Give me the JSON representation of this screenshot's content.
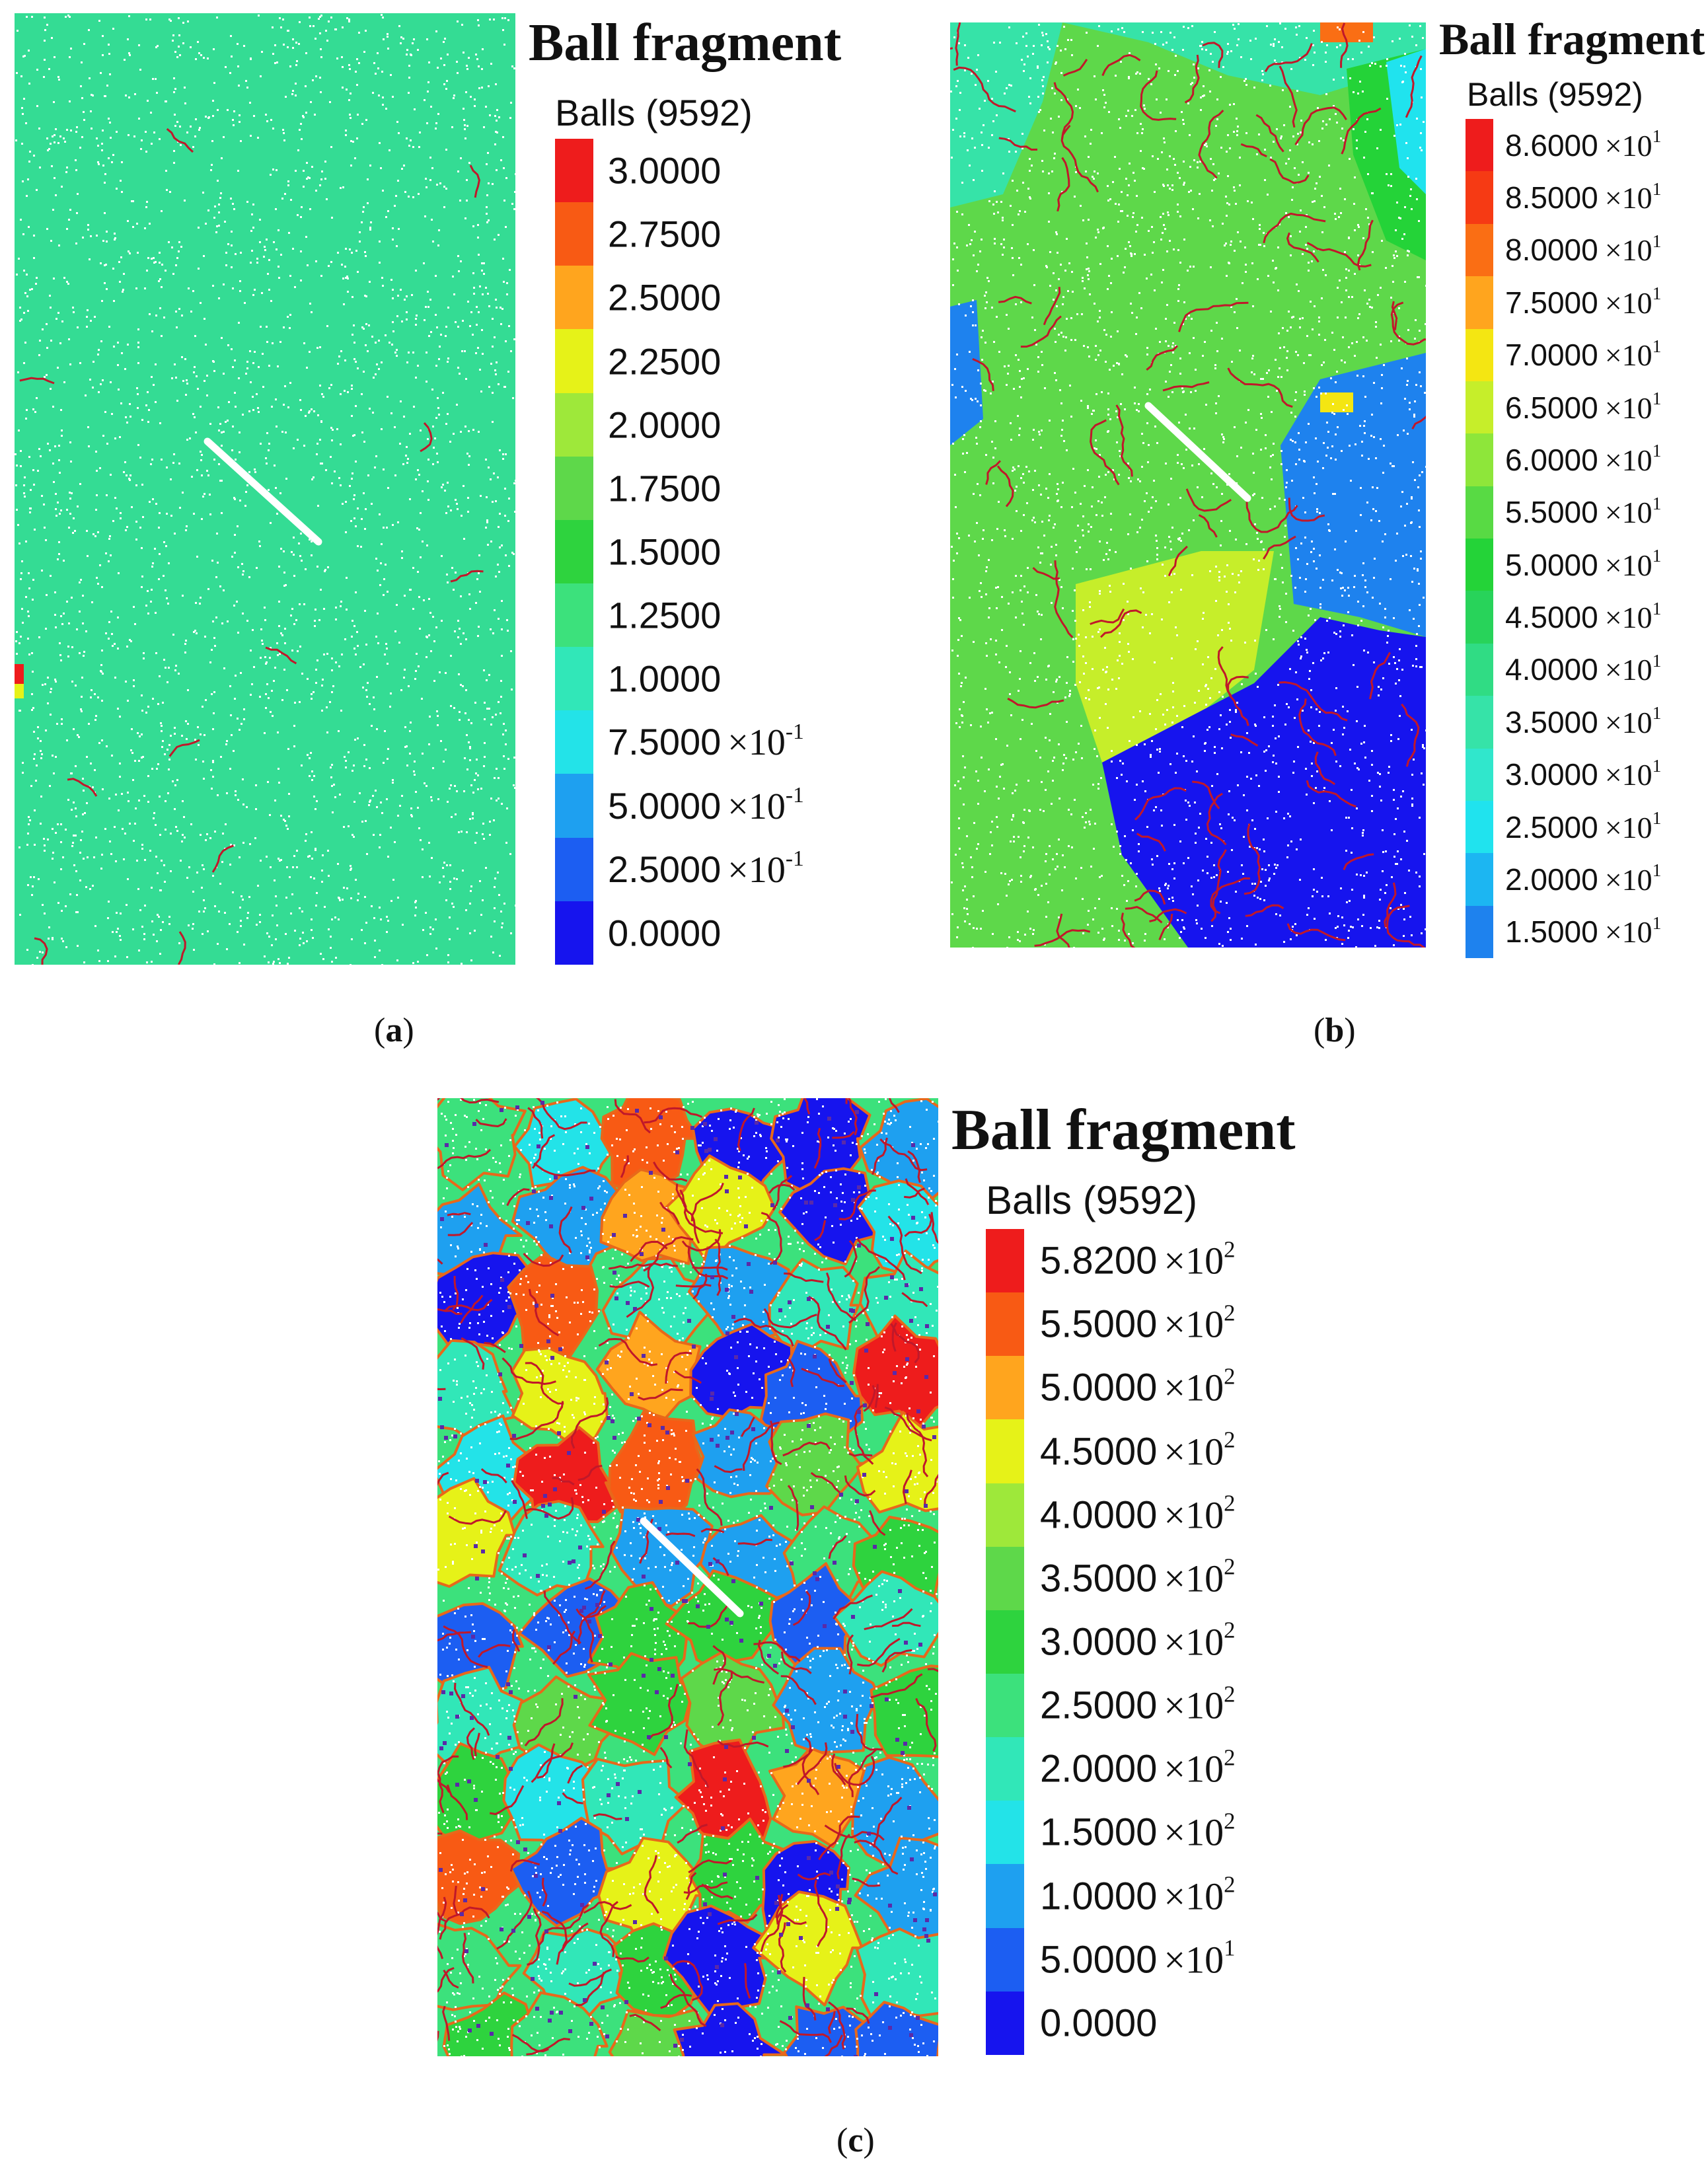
{
  "panels": [
    {
      "id": "a",
      "legend_title": "Ball fragment",
      "legend_subtitle": "Balls (9592)",
      "caption": "a",
      "legend_rows": [
        {
          "value": "3.0000",
          "exp": "",
          "color": "#ee1c1c"
        },
        {
          "value": "2.7500",
          "exp": "",
          "color": "#f85a14"
        },
        {
          "value": "2.5000",
          "exp": "",
          "color": "#ffa51e"
        },
        {
          "value": "2.2500",
          "exp": "",
          "color": "#e6f218"
        },
        {
          "value": "2.0000",
          "exp": "",
          "color": "#9ee83a"
        },
        {
          "value": "1.7500",
          "exp": "",
          "color": "#5ed84a"
        },
        {
          "value": "1.5000",
          "exp": "",
          "color": "#2ed33e"
        },
        {
          "value": "1.2500",
          "exp": "",
          "color": "#3ce17c"
        },
        {
          "value": "1.0000",
          "exp": "",
          "color": "#31e7b8"
        },
        {
          "value": "7.5000",
          "exp": "-1",
          "color": "#23e3e8"
        },
        {
          "value": "5.0000",
          "exp": "-1",
          "color": "#1ea0f0"
        },
        {
          "value": "2.5000",
          "exp": "-1",
          "color": "#1c5ef2"
        },
        {
          "value": "0.0000",
          "exp": "",
          "color": "#1614ee"
        }
      ]
    },
    {
      "id": "b",
      "legend_title": "Ball fragment",
      "legend_subtitle": "Balls (9592)",
      "caption": "b",
      "legend_rows": [
        {
          "value": "8.6000",
          "exp": "1",
          "color": "#ee1c1c"
        },
        {
          "value": "8.5000",
          "exp": "1",
          "color": "#f63a14"
        },
        {
          "value": "8.0000",
          "exp": "1",
          "color": "#fa6e14"
        },
        {
          "value": "7.5000",
          "exp": "1",
          "color": "#ffa51e"
        },
        {
          "value": "7.0000",
          "exp": "1",
          "color": "#f4e612"
        },
        {
          "value": "6.5000",
          "exp": "1",
          "color": "#c6ee2a"
        },
        {
          "value": "6.0000",
          "exp": "1",
          "color": "#8ee63a"
        },
        {
          "value": "5.5000",
          "exp": "1",
          "color": "#58da44"
        },
        {
          "value": "5.0000",
          "exp": "1",
          "color": "#24d338"
        },
        {
          "value": "4.5000",
          "exp": "1",
          "color": "#28d35a"
        },
        {
          "value": "4.0000",
          "exp": "1",
          "color": "#30dc84"
        },
        {
          "value": "3.5000",
          "exp": "1",
          "color": "#36e3a8"
        },
        {
          "value": "3.0000",
          "exp": "1",
          "color": "#30e7cc"
        },
        {
          "value": "2.5000",
          "exp": "1",
          "color": "#20e3ee"
        },
        {
          "value": "2.0000",
          "exp": "1",
          "color": "#1cb6f2"
        },
        {
          "value": "1.5000",
          "exp": "1",
          "color": "#1e82ee"
        }
      ]
    },
    {
      "id": "c",
      "legend_title": "Ball fragment",
      "legend_subtitle": "Balls (9592)",
      "caption": "c",
      "legend_rows": [
        {
          "value": "5.8200",
          "exp": "2",
          "color": "#ee1c1c"
        },
        {
          "value": "5.5000",
          "exp": "2",
          "color": "#f85a14"
        },
        {
          "value": "5.0000",
          "exp": "2",
          "color": "#ffa51e"
        },
        {
          "value": "4.5000",
          "exp": "2",
          "color": "#e6f218"
        },
        {
          "value": "4.0000",
          "exp": "2",
          "color": "#9ee83a"
        },
        {
          "value": "3.5000",
          "exp": "2",
          "color": "#5ed84a"
        },
        {
          "value": "3.0000",
          "exp": "2",
          "color": "#2ed33e"
        },
        {
          "value": "2.5000",
          "exp": "2",
          "color": "#3ce17c"
        },
        {
          "value": "2.0000",
          "exp": "2",
          "color": "#31e7b8"
        },
        {
          "value": "1.5000",
          "exp": "2",
          "color": "#23e3e8"
        },
        {
          "value": "1.0000",
          "exp": "2",
          "color": "#1ea0f0"
        },
        {
          "value": "5.0000",
          "exp": "1",
          "color": "#1c5ef2"
        },
        {
          "value": "0.0000",
          "exp": "",
          "color": "#1614ee"
        }
      ]
    }
  ],
  "colors": {
    "crack": "#c0182a",
    "panel_a_fill": "#34dc94",
    "panel_b_fill": "#5ed84a"
  }
}
